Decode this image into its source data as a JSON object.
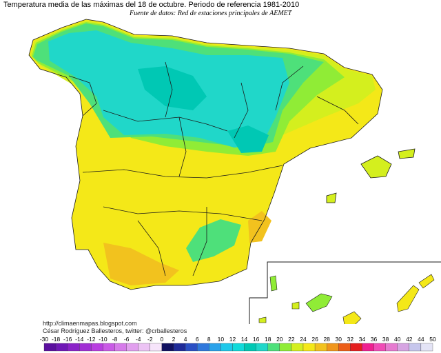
{
  "map": {
    "title": "Temperatura media de las máximas del 18 de octubre. Periodo de referencia 1981-2010",
    "subtitle": "Fuente de datos: Red de estaciones principales de AEMET",
    "credit_url": "http://climaenmapas.blogspot.com",
    "credit_author": "César Rodríguez Ballesteros, twitter: @crballesteros",
    "colors": {
      "sea": "#ffffff",
      "t14_16": "#00c8b4",
      "t16_18": "#20d7c9",
      "t18_20": "#4ee07a",
      "t20_22": "#90ec36",
      "t22_24": "#d4ef1e",
      "t24_26": "#f4e818",
      "t26_28": "#f2c21e",
      "border": "#1a1a1a"
    }
  },
  "legend": {
    "labels": [
      "-30",
      "-18",
      "-16",
      "-14",
      "-12",
      "-10",
      "-8",
      "-6",
      "-4",
      "-2",
      "0",
      "2",
      "4",
      "6",
      "8",
      "10",
      "12",
      "14",
      "16",
      "18",
      "20",
      "22",
      "24",
      "26",
      "28",
      "30",
      "32",
      "34",
      "36",
      "38",
      "40",
      "42",
      "44",
      "50"
    ],
    "colors": [
      "#5a0f9e",
      "#6f18b6",
      "#8a22c8",
      "#a12fd4",
      "#b83ee0",
      "#c95ae6",
      "#d67bea",
      "#e19fee",
      "#ecc3f4",
      "#f6e4fa",
      "#101060",
      "#1e2a98",
      "#2a4fc4",
      "#2f78dc",
      "#2aa2ea",
      "#1ec8ea",
      "#10dada",
      "#00c8b4",
      "#20d7c9",
      "#4ee07a",
      "#90ec36",
      "#d4ef1e",
      "#f4e818",
      "#f2c21e",
      "#f0961c",
      "#ec5e18",
      "#e41e1e",
      "#ee2090",
      "#f04cb6",
      "#e67ad0",
      "#d6a4e2",
      "#c6c6ec",
      "#e4e4f6"
    ]
  }
}
